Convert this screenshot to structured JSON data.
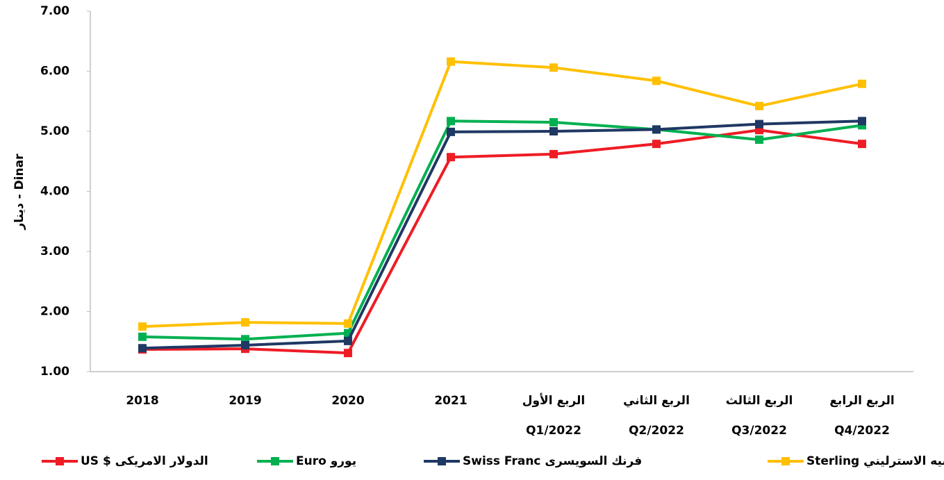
{
  "chart_data": {
    "type": "line",
    "y_label": "دينار - Dinar",
    "categories": [
      [
        "2018"
      ],
      [
        "2019"
      ],
      [
        "2020"
      ],
      [
        "2021"
      ],
      [
        "الربع الأول",
        "Q1/2022"
      ],
      [
        "الربع الثاني",
        "Q2/2022"
      ],
      [
        "الربع الثالث",
        "Q3/2022"
      ],
      [
        "الربع الرابع",
        "Q4/2022"
      ]
    ],
    "ylim": [
      1,
      7
    ],
    "yticks": [
      {
        "value": 1,
        "label": "1.00"
      },
      {
        "value": 2,
        "label": "2.00"
      },
      {
        "value": 3,
        "label": "3.00"
      },
      {
        "value": 4,
        "label": "4.00"
      },
      {
        "value": 5,
        "label": "5.00"
      },
      {
        "value": 6,
        "label": "6.00"
      },
      {
        "value": 7,
        "label": "7.00"
      }
    ],
    "grid": false,
    "legend": "bottom",
    "series": [
      {
        "name": "US $ الدولار الامريكى",
        "color": "#ee1c25",
        "values": [
          1.37,
          1.38,
          1.31,
          4.57,
          4.62,
          4.79,
          5.02,
          4.79
        ]
      },
      {
        "name": "Euro يورو",
        "color": "#00b050",
        "values": [
          1.58,
          1.54,
          1.64,
          5.17,
          5.15,
          5.03,
          4.86,
          5.1
        ]
      },
      {
        "name": "Swiss Franc فرنك السويسرى",
        "color": "#1f3864",
        "values": [
          1.39,
          1.44,
          1.51,
          4.99,
          5.0,
          5.03,
          5.12,
          5.17
        ]
      },
      {
        "name": "Sterling الجنيه الاسترليني",
        "color": "#ffc000",
        "values": [
          1.75,
          1.82,
          1.8,
          6.16,
          6.06,
          5.84,
          5.42,
          5.79
        ]
      }
    ]
  }
}
